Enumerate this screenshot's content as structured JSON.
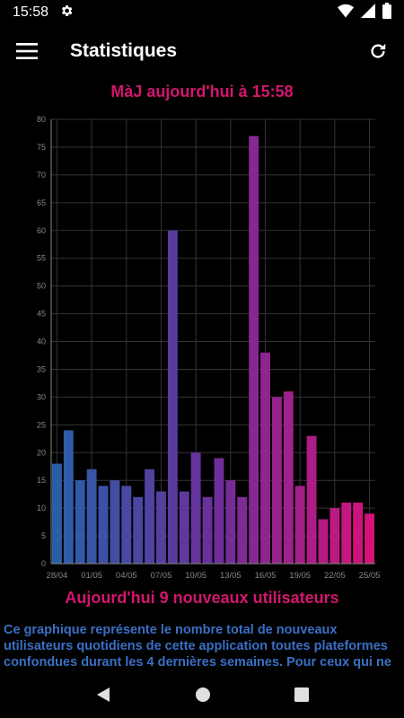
{
  "status_bar": {
    "time": "15:58"
  },
  "app_bar": {
    "title": "Statistiques"
  },
  "updated_label": "MàJ aujourd'hui à 15:58",
  "today_label": "Aujourd'hui 9 nouveaux utilisateurs",
  "description": {
    "lines": [
      "Ce graphique représente le nombre total de nouveaux",
      "utilisateurs quotidiens de cette application toutes plateformes",
      "confondues durant les 4 dernières semaines. Pour ceux qui ne"
    ]
  },
  "icons": {
    "status": [
      "gear-icon",
      "wifi-icon",
      "signal-icon",
      "battery-icon"
    ],
    "app_bar": [
      "menu-icon",
      "refresh-icon"
    ],
    "nav": [
      "back-icon",
      "home-icon",
      "recents-icon"
    ]
  },
  "colors": {
    "accent": "#d4166f",
    "description": "#3a6fc4",
    "bar_start": "#2a5fa8",
    "bar_mid": "#6a2f9a",
    "bar_end": "#d4137a"
  },
  "chart_data": {
    "type": "bar",
    "x_ticks": [
      "28/04",
      "01/05",
      "04/05",
      "07/05",
      "10/05",
      "13/05",
      "16/05",
      "19/05",
      "22/05",
      "25/05"
    ],
    "values": [
      18,
      24,
      15,
      17,
      14,
      15,
      14,
      12,
      17,
      13,
      60,
      13,
      20,
      12,
      19,
      15,
      12,
      77,
      38,
      30,
      31,
      14,
      23,
      8,
      10,
      11,
      11,
      9
    ],
    "ylim": [
      0,
      80
    ],
    "y_ticks": [
      0,
      5,
      10,
      15,
      20,
      25,
      30,
      35,
      40,
      45,
      50,
      55,
      60,
      65,
      70,
      75,
      80
    ],
    "grid": true
  }
}
